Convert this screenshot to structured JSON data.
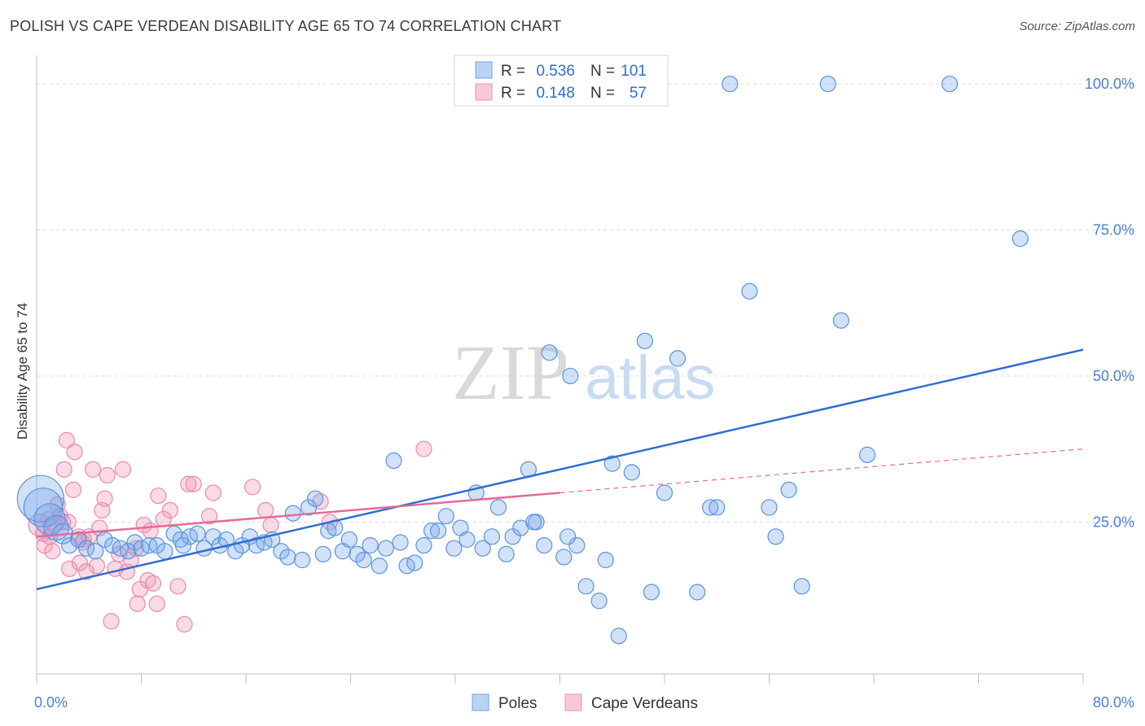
{
  "title": "POLISH VS CAPE VERDEAN DISABILITY AGE 65 TO 74 CORRELATION CHART",
  "source": "Source: ZipAtlas.com",
  "watermark": {
    "zip": "ZIP",
    "atlas": "atlas"
  },
  "legend_top": [
    {
      "r_label": "R =",
      "r_value": "0.536",
      "n_label": "N =",
      "n_value": "101",
      "color": "#6fa3e6",
      "fill": "#b9d3f5"
    },
    {
      "r_label": "R =",
      "r_value": "0.148",
      "n_label": "N =",
      "n_value": "57",
      "color": "#ee8fb0",
      "fill": "#f8c8d8"
    }
  ],
  "colors": {
    "blue": "#2e6fd1",
    "blue_fill": "rgba(120,170,235,0.35)",
    "blue_edge": "#5b93dc",
    "pink": "#e26c96",
    "pink_fill": "rgba(240,150,180,0.35)",
    "pink_edge": "#e88aac",
    "grid": "#dcdcdc"
  },
  "chart_data": {
    "type": "scatter",
    "title": "POLISH VS CAPE VERDEAN DISABILITY AGE 65 TO 74 CORRELATION CHART",
    "xlabel": "",
    "ylabel": "Disability Age 65 to 74",
    "xlim": [
      0,
      80
    ],
    "ylim": [
      -1,
      106
    ],
    "x_tick_labels": [
      "0.0%",
      "80.0%"
    ],
    "y_ticks": [
      25,
      50,
      75,
      100
    ],
    "y_tick_labels": [
      "25.0%",
      "50.0%",
      "75.0%",
      "100.0%"
    ],
    "grid": true,
    "legend_placement": "top-center",
    "series": [
      {
        "name": "Poles",
        "trend": {
          "x": [
            0,
            80
          ],
          "y": [
            13.5,
            54.5
          ]
        },
        "points": [
          [
            0.3,
            29.0,
            3
          ],
          [
            0.5,
            27.5,
            2.5
          ],
          [
            1.0,
            25.5,
            2
          ],
          [
            1.5,
            24.0,
            1.6
          ],
          [
            2.0,
            23.0,
            1.3
          ],
          [
            2.5,
            21.0,
            1
          ],
          [
            3.2,
            22.0,
            1
          ],
          [
            3.8,
            20.5,
            1
          ],
          [
            4.5,
            20.0,
            1
          ],
          [
            5.2,
            22.0,
            1
          ],
          [
            5.8,
            21.0,
            1
          ],
          [
            6.4,
            20.5,
            1
          ],
          [
            7.0,
            20.0,
            1
          ],
          [
            7.5,
            21.5,
            1
          ],
          [
            8.0,
            20.5,
            1
          ],
          [
            8.6,
            21.0,
            1
          ],
          [
            9.2,
            21.0,
            1
          ],
          [
            9.8,
            20.0,
            1
          ],
          [
            10.5,
            23.0,
            1
          ],
          [
            11.2,
            21.0,
            1
          ],
          [
            11.7,
            22.5,
            1
          ],
          [
            12.3,
            23.0,
            1
          ],
          [
            12.8,
            20.5,
            1
          ],
          [
            13.5,
            22.5,
            1
          ],
          [
            14.0,
            21.0,
            1
          ],
          [
            14.5,
            22.0,
            1
          ],
          [
            15.2,
            20.0,
            1
          ],
          [
            15.7,
            21.0,
            1
          ],
          [
            16.3,
            22.5,
            1
          ],
          [
            16.8,
            21.0,
            1
          ],
          [
            17.4,
            21.5,
            1
          ],
          [
            18.0,
            22.0,
            1
          ],
          [
            18.7,
            20.0,
            1
          ],
          [
            19.2,
            19.0,
            1
          ],
          [
            19.6,
            26.5,
            1
          ],
          [
            20.3,
            18.5,
            1
          ],
          [
            20.8,
            27.5,
            1
          ],
          [
            21.3,
            29.0,
            1
          ],
          [
            21.9,
            19.5,
            1
          ],
          [
            22.3,
            23.5,
            1
          ],
          [
            22.8,
            24.0,
            1
          ],
          [
            23.4,
            20.0,
            1
          ],
          [
            23.9,
            22.0,
            1
          ],
          [
            24.5,
            19.5,
            1
          ],
          [
            25.0,
            18.5,
            1
          ],
          [
            25.5,
            21.0,
            1
          ],
          [
            26.2,
            17.5,
            1
          ],
          [
            26.7,
            20.5,
            1
          ],
          [
            27.3,
            35.5,
            1
          ],
          [
            27.8,
            21.5,
            1
          ],
          [
            28.3,
            17.5,
            1
          ],
          [
            28.9,
            18.0,
            1
          ],
          [
            29.6,
            21.0,
            1
          ],
          [
            30.2,
            23.5,
            1
          ],
          [
            30.7,
            23.5,
            1
          ],
          [
            31.3,
            26.0,
            1
          ],
          [
            31.9,
            20.5,
            1
          ],
          [
            32.4,
            24.0,
            1
          ],
          [
            32.9,
            22.0,
            1
          ],
          [
            33.6,
            30.0,
            1
          ],
          [
            34.1,
            20.5,
            1
          ],
          [
            34.8,
            22.5,
            1
          ],
          [
            35.3,
            27.5,
            1
          ],
          [
            35.9,
            19.5,
            1
          ],
          [
            36.4,
            22.5,
            1
          ],
          [
            37.0,
            24.0,
            1
          ],
          [
            37.6,
            34.0,
            1
          ],
          [
            38.2,
            25.0,
            1
          ],
          [
            38.8,
            21.0,
            1
          ],
          [
            39.2,
            54.0,
            1
          ],
          [
            40.3,
            19.0,
            1
          ],
          [
            40.8,
            50.0,
            1
          ],
          [
            41.3,
            21.0,
            1
          ],
          [
            40.6,
            22.5,
            1
          ],
          [
            42.0,
            14.0,
            1
          ],
          [
            43.0,
            11.5,
            1
          ],
          [
            43.5,
            18.5,
            1
          ],
          [
            44.0,
            35.0,
            1
          ],
          [
            44.5,
            5.5,
            1
          ],
          [
            45.5,
            33.5,
            1
          ],
          [
            46.5,
            56.0,
            1
          ],
          [
            47.0,
            13.0,
            1
          ],
          [
            48.0,
            30.0,
            1
          ],
          [
            49.0,
            53.0,
            1
          ],
          [
            50.5,
            13.0,
            1
          ],
          [
            51.5,
            27.5,
            1
          ],
          [
            52.0,
            27.5,
            1
          ],
          [
            53.0,
            100.0,
            1
          ],
          [
            54.5,
            64.5,
            1
          ],
          [
            56.0,
            27.5,
            1
          ],
          [
            56.5,
            22.5,
            1
          ],
          [
            57.5,
            30.5,
            1
          ],
          [
            58.5,
            14.0,
            1
          ],
          [
            60.5,
            100.0,
            1
          ],
          [
            61.5,
            59.5,
            1
          ],
          [
            63.5,
            36.5,
            1
          ],
          [
            69.8,
            100.0,
            1
          ],
          [
            75.2,
            73.5,
            1
          ],
          [
            11.0,
            22.0,
            1
          ],
          [
            38.0,
            25.0,
            1
          ]
        ]
      },
      {
        "name": "Cape Verdeans",
        "trend": {
          "x": [
            0,
            40
          ],
          "y": [
            22.5,
            30.0
          ]
        },
        "trend_dashed": {
          "x": [
            40,
            80
          ],
          "y": [
            30.0,
            37.5
          ]
        },
        "points": [
          [
            0.2,
            24.5,
            1.4
          ],
          [
            0.5,
            23.0,
            1
          ],
          [
            0.6,
            21.0,
            1
          ],
          [
            0.9,
            25.5,
            1
          ],
          [
            1.0,
            22.5,
            1
          ],
          [
            1.2,
            20.0,
            1
          ],
          [
            1.3,
            24.5,
            1
          ],
          [
            1.6,
            28.0,
            1
          ],
          [
            1.8,
            26.0,
            1
          ],
          [
            2.0,
            25.0,
            1
          ],
          [
            2.1,
            34.0,
            1
          ],
          [
            2.3,
            39.0,
            1
          ],
          [
            2.5,
            17.0,
            1
          ],
          [
            2.8,
            30.5,
            1
          ],
          [
            2.9,
            37.0,
            1
          ],
          [
            3.2,
            22.5,
            1
          ],
          [
            3.3,
            18.0,
            1
          ],
          [
            3.5,
            21.5,
            1
          ],
          [
            3.8,
            16.5,
            1
          ],
          [
            4.0,
            22.5,
            1
          ],
          [
            4.3,
            34.0,
            1
          ],
          [
            4.6,
            17.5,
            1
          ],
          [
            4.8,
            24.0,
            1
          ],
          [
            5.0,
            27.0,
            1
          ],
          [
            5.2,
            29.0,
            1
          ],
          [
            5.4,
            33.0,
            1
          ],
          [
            5.7,
            8.0,
            1
          ],
          [
            6.0,
            17.0,
            1
          ],
          [
            6.3,
            19.5,
            1
          ],
          [
            6.6,
            34.0,
            1
          ],
          [
            6.9,
            16.5,
            1
          ],
          [
            7.2,
            18.5,
            1
          ],
          [
            7.6,
            20.5,
            1
          ],
          [
            7.7,
            11.0,
            1
          ],
          [
            7.9,
            13.5,
            1
          ],
          [
            8.2,
            24.5,
            1
          ],
          [
            8.5,
            15.0,
            1
          ],
          [
            8.7,
            23.5,
            1
          ],
          [
            8.9,
            14.5,
            1
          ],
          [
            9.2,
            11.0,
            1
          ],
          [
            9.3,
            29.5,
            1
          ],
          [
            9.7,
            25.5,
            1
          ],
          [
            10.2,
            27.0,
            1
          ],
          [
            10.8,
            14.0,
            1
          ],
          [
            11.3,
            7.5,
            1
          ],
          [
            11.6,
            31.5,
            1
          ],
          [
            12.0,
            31.5,
            1
          ],
          [
            13.2,
            26.0,
            1
          ],
          [
            13.5,
            30.0,
            1
          ],
          [
            16.5,
            31.0,
            1
          ],
          [
            17.5,
            27.0,
            1
          ],
          [
            17.9,
            24.5,
            1
          ],
          [
            21.7,
            28.5,
            1
          ],
          [
            22.4,
            25.0,
            1
          ],
          [
            29.6,
            37.5,
            1
          ],
          [
            2.4,
            25.0,
            1
          ],
          [
            3.6,
            22.0,
            1
          ]
        ]
      }
    ]
  },
  "bottom_legend": [
    {
      "label": "Poles"
    },
    {
      "label": "Cape Verdeans"
    }
  ]
}
